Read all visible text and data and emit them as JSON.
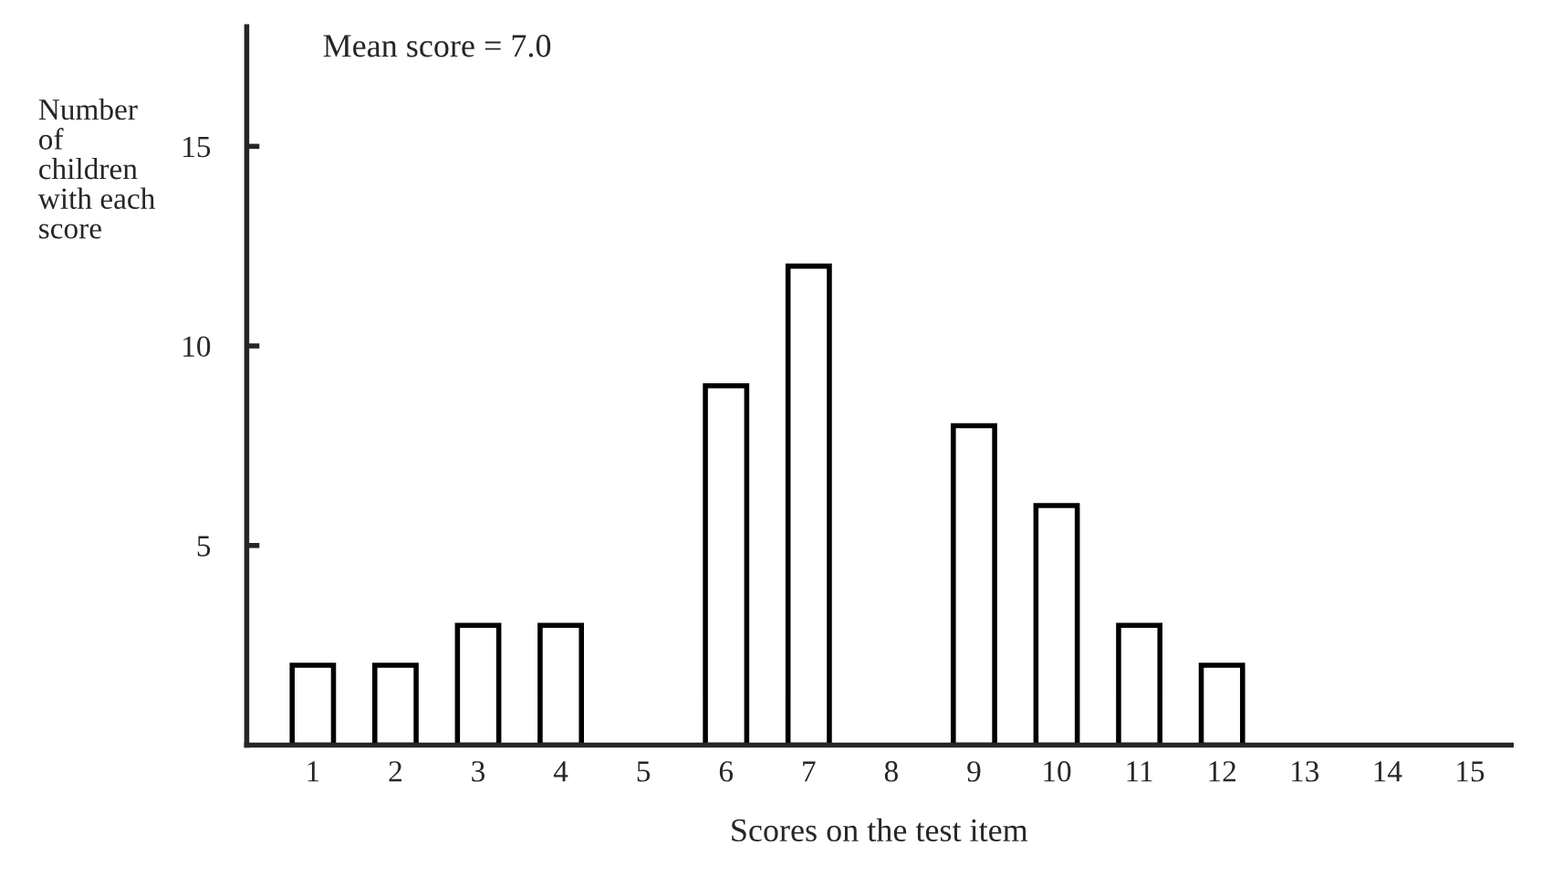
{
  "chart_data": {
    "type": "bar",
    "xlabel": "Scores on the test item",
    "ylabel": "Number\nof\nchildren\nwith each\nscore",
    "annotations": [
      "Mean score = 7.0"
    ],
    "categories": [
      "1",
      "2",
      "3",
      "4",
      "5",
      "6",
      "7",
      "8",
      "9",
      "10",
      "11",
      "12",
      "13",
      "14",
      "15"
    ],
    "values": [
      2,
      2,
      3,
      3,
      null,
      9,
      12,
      null,
      8,
      6,
      3,
      2,
      null,
      null,
      null
    ],
    "color": "#ffffff",
    "ylim": [
      0,
      18
    ],
    "yticks": [
      5,
      10,
      15
    ],
    "grid": false
  }
}
